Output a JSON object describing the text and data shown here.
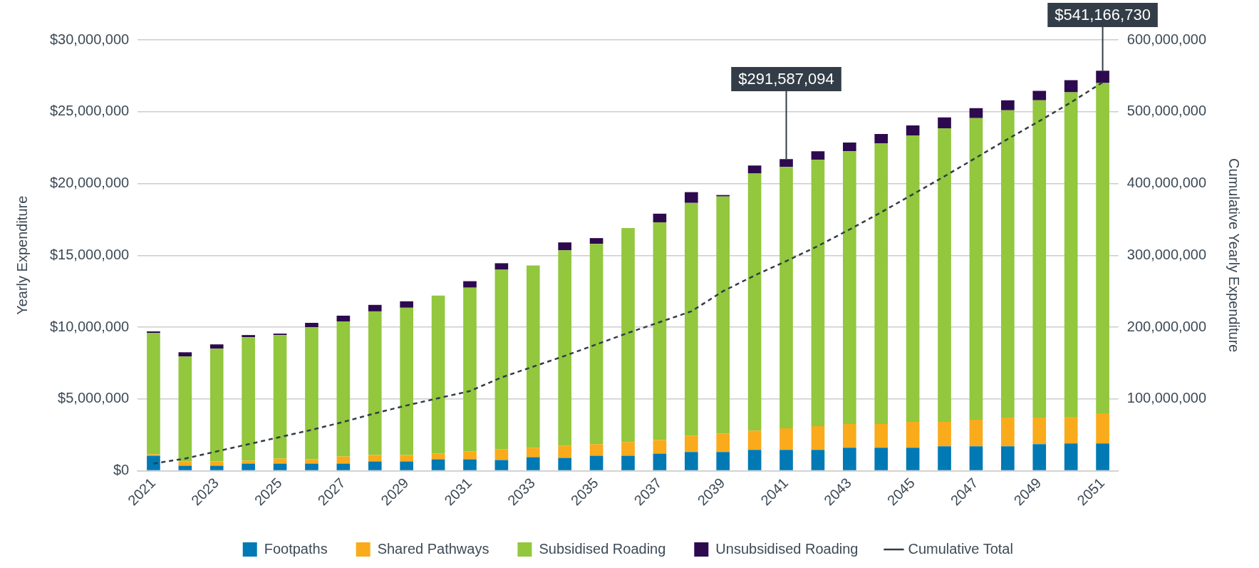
{
  "chart_data": {
    "type": "bar",
    "stacked": true,
    "ylabel": "Yearly Expenditure",
    "y2label": "Cumulative Yearly Expenditure",
    "categories": [
      "2021",
      null,
      "2023",
      null,
      "2025",
      null,
      "2027",
      null,
      "2029",
      null,
      "2031",
      null,
      "2033",
      null,
      "2035",
      null,
      "2037",
      null,
      "2039",
      null,
      "2041",
      null,
      "2043",
      null,
      "2045",
      null,
      "2047",
      null,
      "2049",
      null,
      "2051"
    ],
    "series": [
      {
        "name": "Footpaths",
        "color": "#0079b4",
        "values": [
          1050000,
          350000,
          350000,
          500000,
          500000,
          500000,
          500000,
          650000,
          650000,
          800000,
          800000,
          750000,
          950000,
          900000,
          1050000,
          1050000,
          1200000,
          1300000,
          1300000,
          1450000,
          1450000,
          1450000,
          1600000,
          1600000,
          1600000,
          1700000,
          1700000,
          1700000,
          1850000,
          1900000,
          1900000
        ]
      },
      {
        "name": "Shared Pathways",
        "color": "#f9ab1b",
        "values": [
          100000,
          300000,
          300000,
          200000,
          350000,
          300000,
          500000,
          450000,
          450000,
          400000,
          550000,
          750000,
          650000,
          850000,
          800000,
          950000,
          950000,
          1150000,
          1300000,
          1350000,
          1500000,
          1650000,
          1650000,
          1650000,
          1800000,
          1700000,
          1850000,
          2000000,
          1850000,
          1850000,
          2100000
        ]
      },
      {
        "name": "Subsidised Roading",
        "color": "#92c73e",
        "values": [
          8450000,
          7300000,
          7850000,
          8600000,
          8600000,
          9200000,
          9400000,
          10000000,
          10250000,
          11000000,
          11400000,
          12500000,
          12700000,
          13600000,
          13950000,
          14900000,
          15150000,
          16200000,
          16500000,
          17900000,
          18200000,
          18550000,
          19000000,
          19550000,
          19950000,
          20450000,
          21000000,
          21400000,
          22100000,
          22600000,
          23000000
        ]
      },
      {
        "name": "Unsubsidised Roading",
        "color": "#2d0a4e",
        "values": [
          100000,
          300000,
          300000,
          150000,
          100000,
          300000,
          400000,
          450000,
          450000,
          0,
          450000,
          450000,
          0,
          550000,
          400000,
          0,
          600000,
          750000,
          100000,
          550000,
          550000,
          600000,
          600000,
          650000,
          700000,
          750000,
          700000,
          700000,
          650000,
          850000,
          850000
        ]
      },
      {
        "name": "Cumulative Total",
        "type": "line",
        "axis": "y2",
        "color": "#333d47",
        "line_style": "dashed",
        "marker": "none",
        "values": [
          10000000,
          17000000,
          27000000,
          37000000,
          47000000,
          57000000,
          68000000,
          80000000,
          91000000,
          101000000,
          111000000,
          130000000,
          145000000,
          160000000,
          176000000,
          192000000,
          207000000,
          222000000,
          250000000,
          272000000,
          292000000,
          313000000,
          336000000,
          360000000,
          385000000,
          410000000,
          436000000,
          462000000,
          487000000,
          513000000,
          541000000
        ]
      }
    ],
    "ylim": [
      0,
      30000000
    ],
    "yticks": [
      {
        "value": 0,
        "label": "$0"
      },
      {
        "value": 5000000,
        "label": "$5,000,000"
      },
      {
        "value": 10000000,
        "label": "$10,000,000"
      },
      {
        "value": 15000000,
        "label": "$15,000,000"
      },
      {
        "value": 20000000,
        "label": "$20,000,000"
      },
      {
        "value": 25000000,
        "label": "$25,000,000"
      },
      {
        "value": 30000000,
        "label": "$30,000,000"
      }
    ],
    "y2lim": [
      0,
      600000000
    ],
    "y2ticks": [
      {
        "value": 100000000,
        "label": "100,000,000"
      },
      {
        "value": 200000000,
        "label": "200,000,000"
      },
      {
        "value": 300000000,
        "label": "300,000,000"
      },
      {
        "value": 400000000,
        "label": "400,000,000"
      },
      {
        "value": 500000000,
        "label": "500,000,000"
      },
      {
        "value": 600000000,
        "label": "600,000,000"
      }
    ],
    "annotations": [
      {
        "text": "$291,587,094",
        "x": "2041"
      },
      {
        "text": "$541,166,730",
        "x": "2051"
      }
    ],
    "grid": "y",
    "legend": "bottom"
  }
}
